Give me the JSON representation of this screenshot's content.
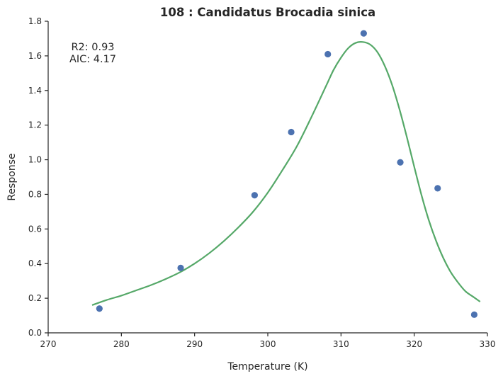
{
  "chart_data": {
    "type": "scatter",
    "title": "108 : Candidatus Brocadia sinica",
    "xlabel": "Temperature (K)",
    "ylabel": "Response",
    "xlim": [
      270,
      330
    ],
    "ylim": [
      0.0,
      1.8
    ],
    "xticks": [
      "270",
      "280",
      "290",
      "300",
      "310",
      "320",
      "330"
    ],
    "yticks": [
      "0.0",
      "0.2",
      "0.4",
      "0.6",
      "0.8",
      "1.0",
      "1.2",
      "1.4",
      "1.6",
      "1.8"
    ],
    "grid": false,
    "annotations": [
      "R2: 0.93",
      "AIC: 4.17"
    ],
    "points": {
      "color": "#4c72b0",
      "x": [
        277.0,
        288.1,
        298.2,
        303.2,
        308.2,
        313.1,
        318.1,
        323.2,
        328.2
      ],
      "y": [
        0.14,
        0.375,
        0.795,
        1.16,
        1.61,
        1.73,
        0.985,
        0.835,
        0.105
      ]
    },
    "fit": {
      "color": "#55a868",
      "x": [
        276,
        278,
        280,
        282,
        284,
        286,
        288,
        290,
        292,
        294,
        296,
        298,
        300,
        302,
        304,
        306,
        308,
        309,
        310,
        311,
        312,
        313,
        314,
        315,
        316,
        317,
        318,
        319,
        320,
        321,
        322,
        323,
        324,
        325,
        326,
        327,
        328,
        329
      ],
      "y": [
        0.16,
        0.19,
        0.215,
        0.245,
        0.275,
        0.31,
        0.35,
        0.4,
        0.46,
        0.53,
        0.61,
        0.7,
        0.81,
        0.94,
        1.08,
        1.25,
        1.43,
        1.52,
        1.59,
        1.645,
        1.675,
        1.68,
        1.665,
        1.62,
        1.54,
        1.43,
        1.29,
        1.13,
        0.96,
        0.795,
        0.65,
        0.53,
        0.43,
        0.35,
        0.29,
        0.24,
        0.21,
        0.18
      ]
    }
  }
}
